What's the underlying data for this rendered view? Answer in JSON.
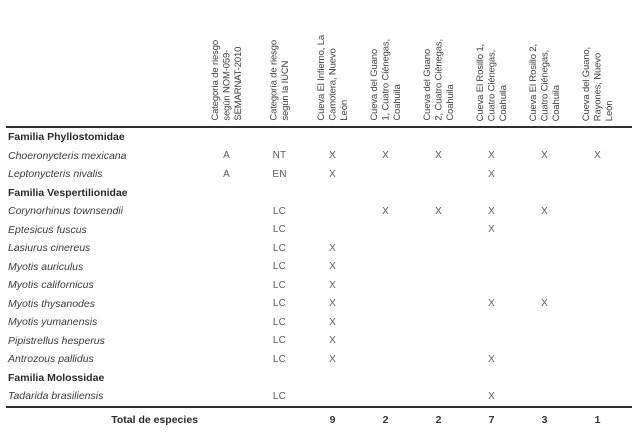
{
  "table": {
    "columns": [
      {
        "id": "nom059",
        "label": "Categoría de riesgo\nsegún NOM-059-\nSEMARNAT-2010"
      },
      {
        "id": "iucn",
        "label": "Categoría de riesgo\nsegún la IUCN"
      },
      {
        "id": "infierno",
        "label": "Cueva El Infierno, La\nCamotera, Nuevo\nLeón"
      },
      {
        "id": "guano1",
        "label": "Cueva del Guano\n1, Cuatro Ciénegas,\nCoahuila"
      },
      {
        "id": "guano2",
        "label": "Cueva del Guano\n2, Cuatro Ciénegas,\nCoahuila"
      },
      {
        "id": "rosillo1",
        "label": "Cueva El Rosillo 1,\nCuatro Ciénegas,\nCoahuila"
      },
      {
        "id": "rosillo2",
        "label": "Cueva El Rosillo 2,\nCuatro Ciénegas,\nCoahuila"
      },
      {
        "id": "rayones",
        "label": "Cueva del Guano,\nRayones, Nuevo\nLeón"
      }
    ],
    "rows": [
      {
        "type": "family",
        "name": "Familia Phyllostomidae",
        "cells": [
          "",
          "",
          "",
          "",
          "",
          "",
          "",
          ""
        ]
      },
      {
        "type": "species",
        "name": "Choeronycteris mexicana",
        "cells": [
          "A",
          "NT",
          "X",
          "X",
          "X",
          "X",
          "X",
          "X"
        ]
      },
      {
        "type": "species",
        "name": "Leptonycteris nivalis",
        "cells": [
          "A",
          "EN",
          "X",
          "",
          "",
          "X",
          "",
          ""
        ]
      },
      {
        "type": "family",
        "name": "Familia Vespertilionidae",
        "cells": [
          "",
          "",
          "",
          "",
          "",
          "",
          "",
          ""
        ]
      },
      {
        "type": "species",
        "name": "Corynorhinus townsendii",
        "cells": [
          "",
          "LC",
          "",
          "X",
          "X",
          "X",
          "X",
          ""
        ]
      },
      {
        "type": "species",
        "name": "Eptesicus fuscus",
        "cells": [
          "",
          "LC",
          "",
          "",
          "",
          "X",
          "",
          ""
        ]
      },
      {
        "type": "species",
        "name": "Lasiurus cinereus",
        "cells": [
          "",
          "LC",
          "X",
          "",
          "",
          "",
          "",
          ""
        ]
      },
      {
        "type": "species",
        "name": "Myotis auriculus",
        "cells": [
          "",
          "LC",
          "X",
          "",
          "",
          "",
          "",
          ""
        ]
      },
      {
        "type": "species",
        "name": "Myotis californicus",
        "cells": [
          "",
          "LC",
          "X",
          "",
          "",
          "",
          "",
          ""
        ]
      },
      {
        "type": "species",
        "name": "Myotis thysanodes",
        "cells": [
          "",
          "LC",
          "X",
          "",
          "",
          "X",
          "X",
          ""
        ]
      },
      {
        "type": "species",
        "name": "Myotis yumanensis",
        "cells": [
          "",
          "LC",
          "X",
          "",
          "",
          "",
          "",
          ""
        ]
      },
      {
        "type": "species",
        "name": "Pipistrellus hesperus",
        "cells": [
          "",
          "LC",
          "X",
          "",
          "",
          "",
          "",
          ""
        ]
      },
      {
        "type": "species",
        "name": "Antrozous pallidus",
        "cells": [
          "",
          "LC",
          "X",
          "",
          "",
          "X",
          "",
          ""
        ]
      },
      {
        "type": "family",
        "name": "Familia Molossidae",
        "cells": [
          "",
          "",
          "",
          "",
          "",
          "",
          "",
          ""
        ]
      },
      {
        "type": "species",
        "name": "Tadarida brasiliensis",
        "cells": [
          "",
          "LC",
          "",
          "",
          "",
          "X",
          "",
          ""
        ]
      }
    ],
    "total_row": {
      "label": "Total de especies",
      "cells": [
        "",
        "",
        "9",
        "2",
        "2",
        "7",
        "3",
        "1"
      ]
    }
  },
  "colors": {
    "text": "#3d3d3d",
    "family_text": "#2b2b2b",
    "mark_text": "#585d66",
    "rule": "#2f2f2f",
    "background": "#ffffff"
  }
}
